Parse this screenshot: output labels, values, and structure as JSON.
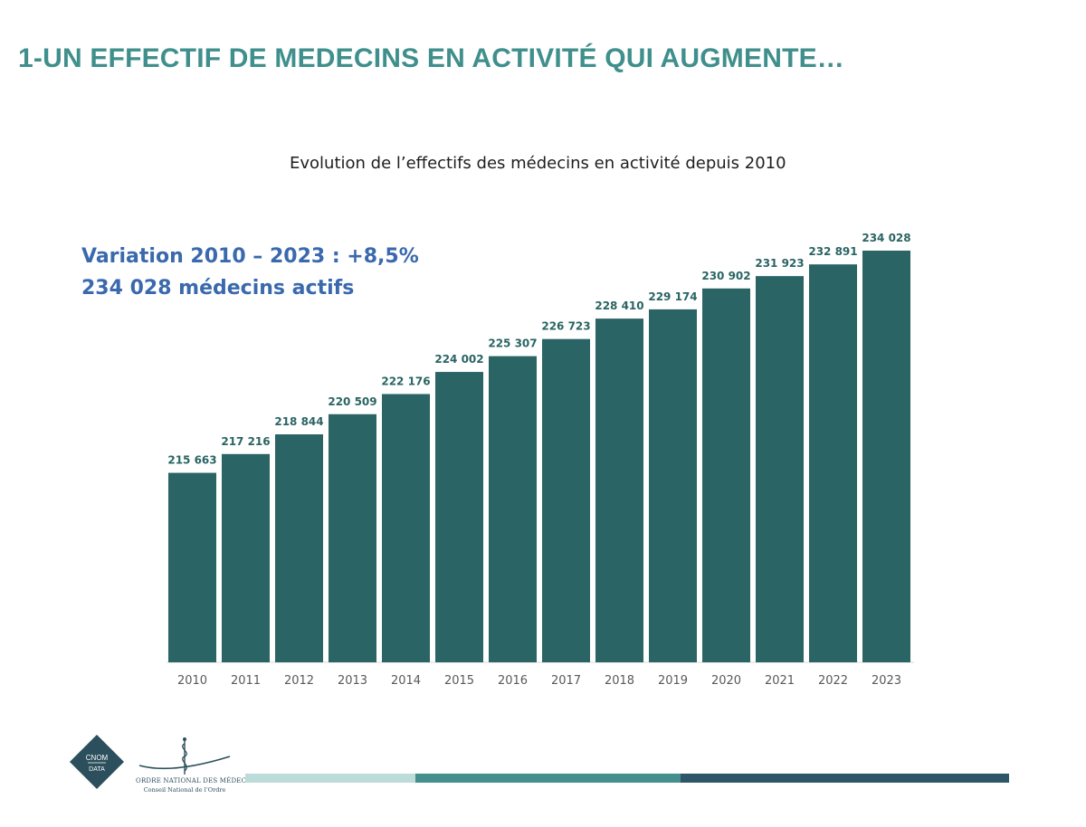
{
  "slide": {
    "title": "1-UN EFFECTIF DE MEDECINS EN ACTIVITÉ QUI AUGMENTE…"
  },
  "highlight": {
    "line1": "Variation 2010 – 2023 : +8,5%",
    "line2": "234 028 médecins actifs"
  },
  "chart_data": {
    "type": "bar",
    "title": "Evolution de l’effectifs des médecins en activité depuis 2010",
    "xlabel": "",
    "ylabel": "",
    "categories": [
      "2010",
      "2011",
      "2012",
      "2013",
      "2014",
      "2015",
      "2016",
      "2017",
      "2018",
      "2019",
      "2020",
      "2021",
      "2022",
      "2023"
    ],
    "values": [
      215663,
      217216,
      218844,
      220509,
      222176,
      224002,
      225307,
      226723,
      228410,
      229174,
      230902,
      231923,
      232891,
      234028
    ],
    "value_labels": [
      "215 663",
      "217 216",
      "218 844",
      "220 509",
      "222 176",
      "224 002",
      "225 307",
      "226 723",
      "228 410",
      "229 174",
      "230 902",
      "231 923",
      "232 891",
      "234 028"
    ],
    "ylim": [
      200000,
      235000
    ],
    "grid": false,
    "legend": "none",
    "bar_color": "#2a6464",
    "label_color": "#2a6464"
  },
  "logos": {
    "cnom_line1": "CNOM",
    "cnom_line2": "DATA",
    "ordre_line1": "ORDRE NATIONAL DES MÉDECINS",
    "ordre_line2": "Conseil National de l’Ordre"
  },
  "colors": {
    "title": "#3f8f8c",
    "highlight": "#3a69ad",
    "footer_light": "#bcdcda",
    "footer_mid": "#448f8e",
    "footer_dark": "#2d5668",
    "logo_navy": "#2b4f5c"
  }
}
